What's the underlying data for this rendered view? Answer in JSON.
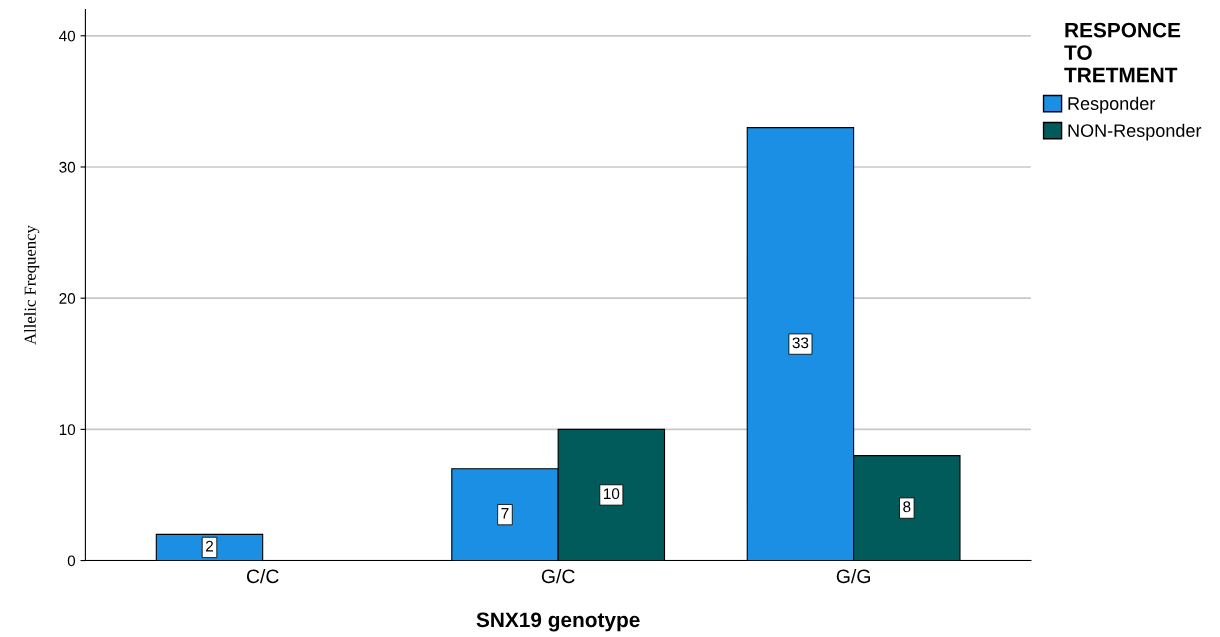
{
  "chart_data": {
    "type": "bar",
    "xlabel": "SNX19 genotype",
    "ylabel": "Allelic Frequency",
    "legend_title": "RESPONCE\nTO\nTRETMENT",
    "categories": [
      "C/C",
      "G/C",
      "G/G"
    ],
    "series": [
      {
        "name": "Responder",
        "color": "#1b8fe4",
        "values": [
          2,
          7,
          33
        ],
        "value_labels": [
          "2",
          "7",
          "33"
        ]
      },
      {
        "name": "NON-Responder",
        "color": "#005b5a",
        "values": [
          null,
          10,
          8
        ],
        "value_labels": [
          null,
          "10",
          "8"
        ]
      }
    ],
    "ylim": [
      0,
      42
    ],
    "yticks": [
      0,
      10,
      20,
      30,
      40
    ],
    "grid": "y",
    "legend": "top right"
  }
}
